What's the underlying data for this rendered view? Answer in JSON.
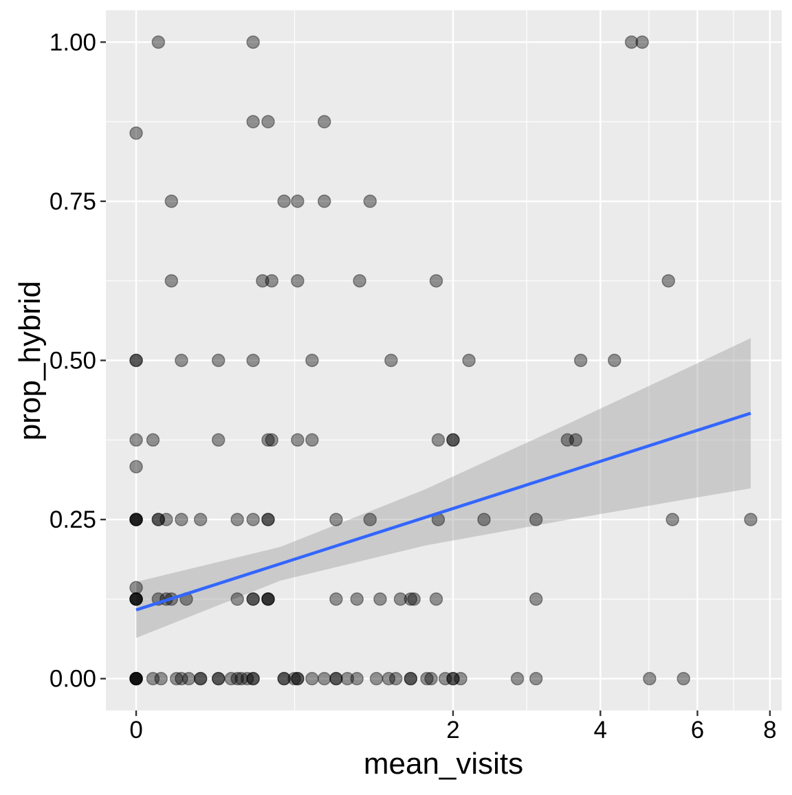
{
  "chart_data": {
    "type": "scatter",
    "xlabel": "mean_visits",
    "ylabel": "prop_hybrid",
    "x_scale": "log1p",
    "xlim": [
      -0.11,
      8.37
    ],
    "ylim": [
      -0.05,
      1.05
    ],
    "x_ticks": [
      0,
      2,
      4,
      6,
      8
    ],
    "x_tick_labels": [
      "0",
      "2",
      "4",
      "6",
      "8"
    ],
    "y_ticks": [
      0,
      0.25,
      0.5,
      0.75,
      1.0
    ],
    "y_tick_labels": [
      "0.00",
      "0.25",
      "0.50",
      "0.75",
      "1.00"
    ],
    "grid": true,
    "point_color": "#000000",
    "point_alpha": 0.4,
    "line_color": "#3366FF",
    "band_color": "#999999",
    "points": [
      [
        0.08,
        1
      ],
      [
        0.5,
        1
      ],
      [
        4.57,
        1
      ],
      [
        4.78,
        1
      ],
      [
        0,
        0.857
      ],
      [
        0.5,
        0.875
      ],
      [
        0.58,
        0.875
      ],
      [
        0.92,
        0.875
      ],
      [
        0.13,
        0.75
      ],
      [
        0.67,
        0.75
      ],
      [
        0.75,
        0.75
      ],
      [
        0.92,
        0.75
      ],
      [
        1.25,
        0.75
      ],
      [
        0.13,
        0.625
      ],
      [
        0.55,
        0.625
      ],
      [
        0.6,
        0.625
      ],
      [
        0.75,
        0.625
      ],
      [
        1.17,
        0.625
      ],
      [
        1.83,
        0.625
      ],
      [
        5.33,
        0.625
      ],
      [
        0,
        0.5
      ],
      [
        0,
        0.5
      ],
      [
        0.17,
        0.5
      ],
      [
        0.33,
        0.5
      ],
      [
        0.5,
        0.5
      ],
      [
        0.84,
        0.5
      ],
      [
        1.42,
        0.5
      ],
      [
        2.17,
        0.5
      ],
      [
        3.67,
        0.5
      ],
      [
        4.25,
        0.5
      ],
      [
        0,
        0.375
      ],
      [
        0.06,
        0.375
      ],
      [
        0.33,
        0.375
      ],
      [
        0.58,
        0.375
      ],
      [
        0.6,
        0.375
      ],
      [
        0.75,
        0.375
      ],
      [
        0.84,
        0.375
      ],
      [
        1.85,
        0.375
      ],
      [
        2,
        0.375
      ],
      [
        2,
        0.375
      ],
      [
        3.46,
        0.375
      ],
      [
        3.59,
        0.375
      ],
      [
        0,
        0.333
      ],
      [
        0,
        0.25
      ],
      [
        0,
        0.25
      ],
      [
        0,
        0.25
      ],
      [
        0,
        0.25
      ],
      [
        0.08,
        0.25
      ],
      [
        0.08,
        0.25
      ],
      [
        0.11,
        0.25
      ],
      [
        0.17,
        0.25
      ],
      [
        0.25,
        0.25
      ],
      [
        0.42,
        0.25
      ],
      [
        0.5,
        0.25
      ],
      [
        0.58,
        0.25
      ],
      [
        0.58,
        0.25
      ],
      [
        1,
        0.25
      ],
      [
        1.25,
        0.25
      ],
      [
        1.85,
        0.25
      ],
      [
        2.34,
        0.25
      ],
      [
        3,
        0.25
      ],
      [
        5.42,
        0.25
      ],
      [
        7.42,
        0.25
      ],
      [
        0,
        0.143
      ],
      [
        0,
        0.125
      ],
      [
        0,
        0.125
      ],
      [
        0,
        0.125
      ],
      [
        0,
        0.125
      ],
      [
        0.08,
        0.125
      ],
      [
        0.11,
        0.125
      ],
      [
        0.13,
        0.125
      ],
      [
        0.19,
        0.125
      ],
      [
        0.42,
        0.125
      ],
      [
        0.5,
        0.125
      ],
      [
        0.5,
        0.125
      ],
      [
        0.58,
        0.125
      ],
      [
        0.58,
        0.125
      ],
      [
        0.58,
        0.125
      ],
      [
        1,
        0.125
      ],
      [
        1.15,
        0.125
      ],
      [
        1.33,
        0.125
      ],
      [
        1.5,
        0.125
      ],
      [
        1.59,
        0.125
      ],
      [
        1.62,
        0.125
      ],
      [
        1.83,
        0.125
      ],
      [
        3,
        0.125
      ],
      [
        0,
        0
      ],
      [
        0,
        0
      ],
      [
        0,
        0
      ],
      [
        0,
        0
      ],
      [
        0,
        0
      ],
      [
        0.06,
        0
      ],
      [
        0.09,
        0
      ],
      [
        0.15,
        0
      ],
      [
        0.17,
        0
      ],
      [
        0.2,
        0
      ],
      [
        0.25,
        0
      ],
      [
        0.25,
        0
      ],
      [
        0.33,
        0
      ],
      [
        0.33,
        0
      ],
      [
        0.39,
        0
      ],
      [
        0.42,
        0
      ],
      [
        0.44,
        0
      ],
      [
        0.47,
        0
      ],
      [
        0.5,
        0
      ],
      [
        0.5,
        0
      ],
      [
        0.67,
        0
      ],
      [
        0.67,
        0
      ],
      [
        0.73,
        0
      ],
      [
        0.75,
        0
      ],
      [
        0.75,
        0
      ],
      [
        0.84,
        0
      ],
      [
        0.92,
        0
      ],
      [
        1,
        0
      ],
      [
        1,
        0
      ],
      [
        1.08,
        0
      ],
      [
        1.15,
        0
      ],
      [
        1.3,
        0
      ],
      [
        1.4,
        0
      ],
      [
        1.46,
        0
      ],
      [
        1.59,
        0
      ],
      [
        1.59,
        0
      ],
      [
        1.74,
        0
      ],
      [
        1.78,
        0
      ],
      [
        1.92,
        0
      ],
      [
        2,
        0
      ],
      [
        2,
        0
      ],
      [
        2.08,
        0
      ],
      [
        2.75,
        0
      ],
      [
        3,
        0
      ],
      [
        4.93,
        0
      ],
      [
        5.67,
        0
      ]
    ],
    "fit": {
      "x": [
        0,
        0.649,
        1.718,
        3.482,
        6.389,
        7.42
      ],
      "y": [
        0.108,
        0.1805,
        0.253,
        0.3255,
        0.398,
        0.417
      ],
      "lower": [
        0.064,
        0.154,
        0.209,
        0.25,
        0.289,
        0.299
      ],
      "upper": [
        0.152,
        0.207,
        0.297,
        0.401,
        0.507,
        0.535
      ]
    }
  }
}
